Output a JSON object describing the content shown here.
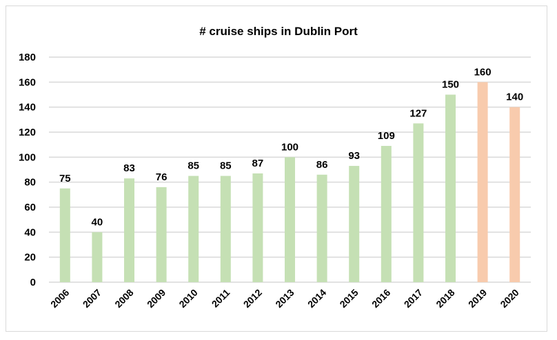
{
  "chart_data": {
    "type": "bar",
    "title": "# cruise ships in Dublin Port",
    "xlabel": "",
    "ylabel": "",
    "categories": [
      "2006",
      "2007",
      "2008",
      "2009",
      "2010",
      "2011",
      "2012",
      "2013",
      "2014",
      "2015",
      "2016",
      "2017",
      "2018",
      "2019",
      "2020"
    ],
    "values": [
      75,
      40,
      83,
      76,
      85,
      85,
      87,
      100,
      86,
      93,
      109,
      127,
      150,
      160,
      140
    ],
    "bar_colors": [
      "#C5E0B4",
      "#C5E0B4",
      "#C5E0B4",
      "#C5E0B4",
      "#C5E0B4",
      "#C5E0B4",
      "#C5E0B4",
      "#C5E0B4",
      "#C5E0B4",
      "#C5E0B4",
      "#C5E0B4",
      "#C5E0B4",
      "#C5E0B4",
      "#F8CBAD",
      "#F8CBAD"
    ],
    "ylim": [
      0,
      180
    ],
    "yticks": [
      0,
      20,
      40,
      60,
      80,
      100,
      120,
      140,
      160,
      180
    ],
    "grid": true,
    "data_labels": true,
    "legend": "none"
  }
}
